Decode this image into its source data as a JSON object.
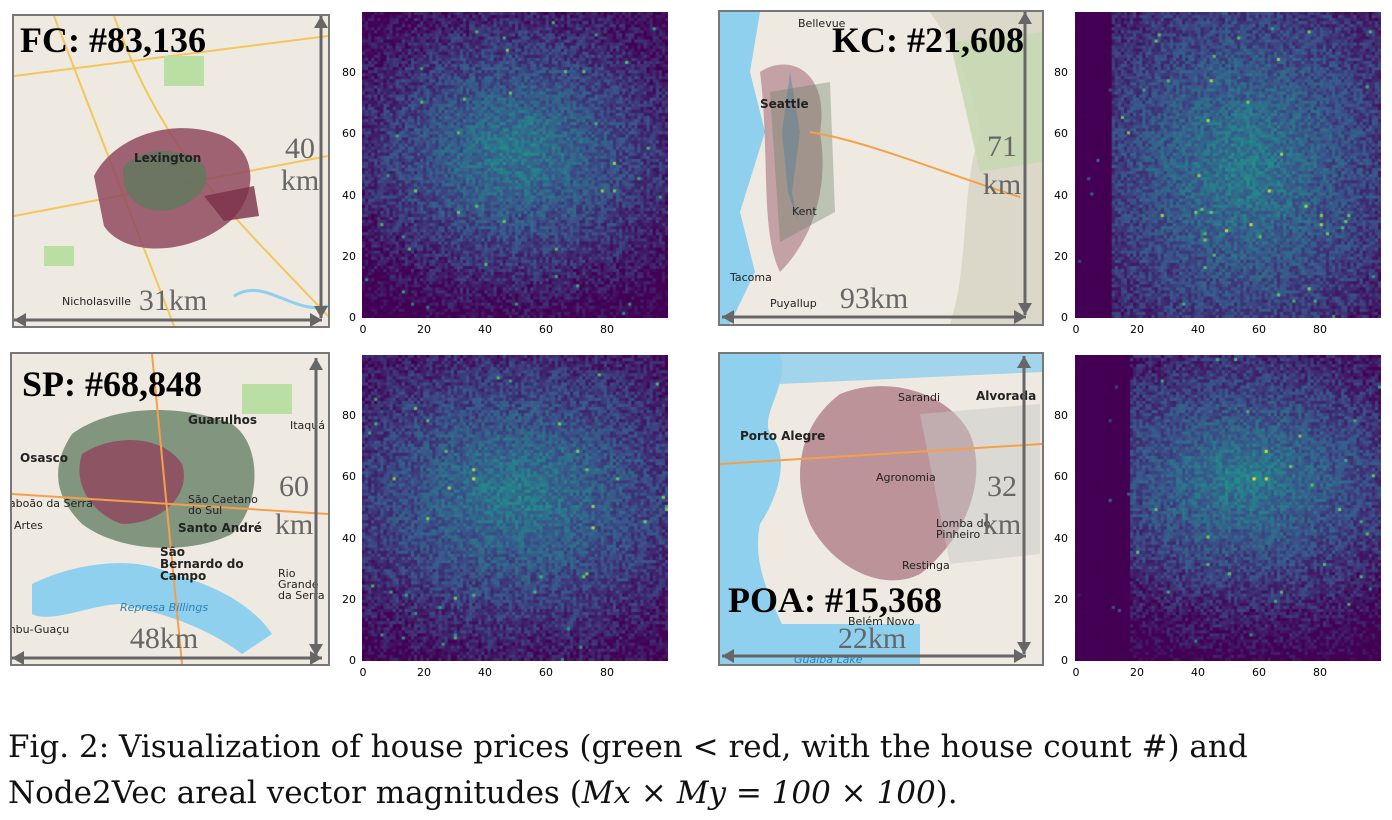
{
  "panels": [
    {
      "id": "fc",
      "title": "FC: #83,136",
      "width_label": "31km",
      "height_label_num": "40",
      "height_label_unit": "km",
      "places": [
        "Lexington",
        "Nicholasville"
      ],
      "accent": "#7a2f4a",
      "heatmap": {
        "xticks": [
          "0",
          "20",
          "40",
          "60",
          "80"
        ],
        "yticks": [
          "0",
          "20",
          "40",
          "60",
          "80"
        ]
      }
    },
    {
      "id": "kc",
      "title": "KC: #21,608",
      "width_label": "93km",
      "height_label_num": "71",
      "height_label_unit": "km",
      "places": [
        "Seattle",
        "Bellevue",
        "Tacoma",
        "Kent",
        "Puyallup"
      ],
      "accent": "#7a2f4a",
      "heatmap": {
        "xticks": [
          "0",
          "20",
          "40",
          "60",
          "80"
        ],
        "yticks": [
          "0",
          "20",
          "40",
          "60",
          "80"
        ]
      }
    },
    {
      "id": "sp",
      "title": "SP: #68,848",
      "width_label": "48km",
      "height_label_num": "60",
      "height_label_unit": "km",
      "places": [
        "Guarulhos",
        "Osasco",
        "Santo André",
        "São Bernardo do Campo",
        "Itaquá",
        "Artes",
        "Rio Grande da Serra",
        "São Caetano do Sul",
        "Represa Billings",
        "Embu-Guaçu",
        "Taboão da Serra"
      ],
      "accent": "#7a2f4a",
      "heatmap": {
        "xticks": [
          "0",
          "20",
          "40",
          "60",
          "80"
        ],
        "yticks": [
          "0",
          "20",
          "40",
          "60",
          "80"
        ]
      }
    },
    {
      "id": "poa",
      "title": "POA: #15,368",
      "width_label": "22km",
      "height_label_num": "32",
      "height_label_unit": "km",
      "places": [
        "Alvorada",
        "Porto Alegre",
        "Lomba do Pinheiro",
        "Restinga",
        "Belém Novo",
        "Agronomia",
        "Sarandi",
        "Guaíba Lake"
      ],
      "accent": "#7a2f4a",
      "heatmap": {
        "xticks": [
          "0",
          "20",
          "40",
          "60",
          "80"
        ],
        "yticks": [
          "0",
          "20",
          "40",
          "60",
          "80"
        ]
      }
    }
  ],
  "caption": {
    "prefix": "Fig. 2: ",
    "line1": "Visualization of house prices (green < red, with the house count #) and",
    "line2_a": "Node2Vec areal vector magnitudes (",
    "line2_math": "Mx × My = 100 × 100",
    "line2_b": ")."
  },
  "colors": {
    "water": "#8fd0ee",
    "land": "#efeae1",
    "heat_low": "#440154",
    "heat_mid": "#21918c",
    "heat_high": "#fde725"
  }
}
